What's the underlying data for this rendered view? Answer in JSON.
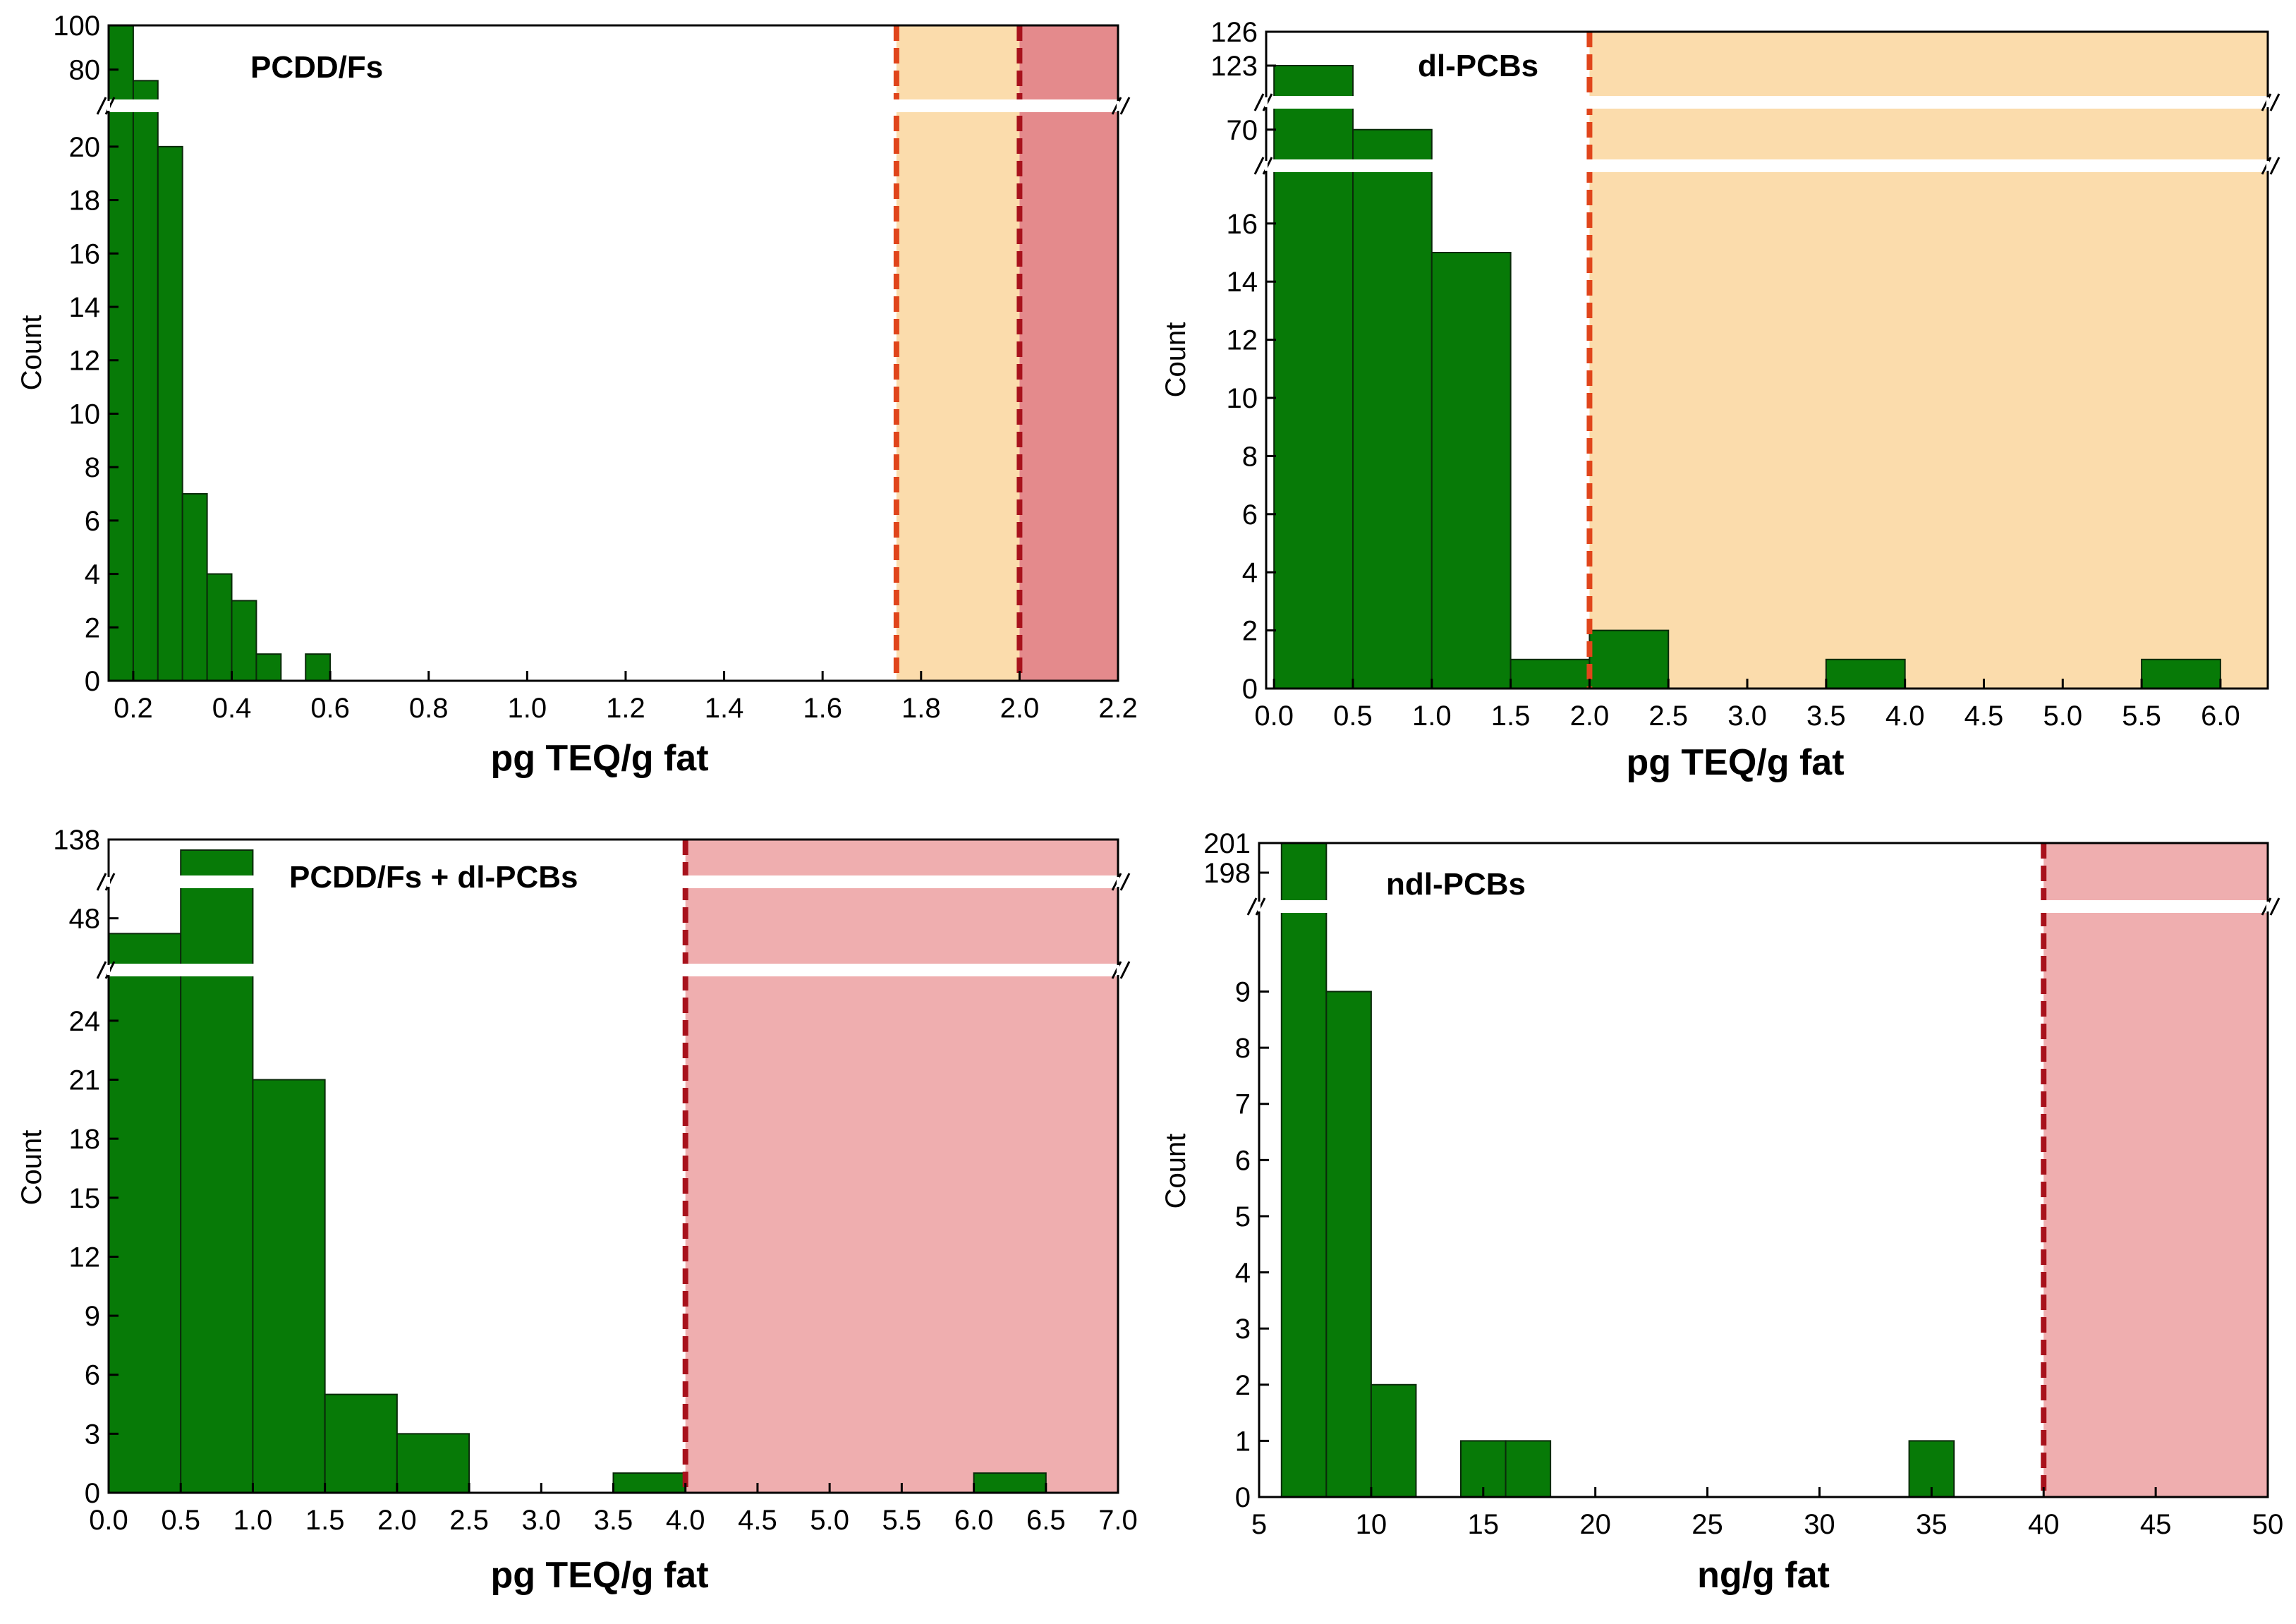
{
  "colors": {
    "bar_fill": "#077a07",
    "bar_stroke": "#0a2a0a",
    "zone_orange": "#fbdcac",
    "zone_red": "#e48a8c",
    "zone_pink": "#efaeaf",
    "line_orange": "#e0451b",
    "line_darkred": "#a8121c"
  },
  "chart_data": [
    {
      "id": "pcdd",
      "type": "bar",
      "title": "PCDD/Fs",
      "xlabel": "pg TEQ/g fat",
      "ylabel": "Count",
      "xlim": [
        0.15,
        2.2
      ],
      "xticks": [
        "0.2",
        "0.4",
        "0.6",
        "0.8",
        "1.0",
        "1.2",
        "1.4",
        "1.6",
        "1.8",
        "2.0",
        "2.2"
      ],
      "yticks_low": [
        "0",
        "2",
        "4",
        "6",
        "8",
        "10",
        "12",
        "14",
        "16",
        "18",
        "20"
      ],
      "yticks_high": [
        "80",
        "100"
      ],
      "ybreak": {
        "low_range": [
          0,
          21
        ],
        "high_range": [
          70,
          100
        ]
      },
      "bins": [
        {
          "x0": 0.15,
          "x1": 0.2,
          "value": 100
        },
        {
          "x0": 0.2,
          "x1": 0.25,
          "value": 75
        },
        {
          "x0": 0.25,
          "x1": 0.3,
          "value": 20
        },
        {
          "x0": 0.3,
          "x1": 0.35,
          "value": 7
        },
        {
          "x0": 0.35,
          "x1": 0.4,
          "value": 4
        },
        {
          "x0": 0.4,
          "x1": 0.45,
          "value": 3
        },
        {
          "x0": 0.45,
          "x1": 0.5,
          "value": 1
        },
        {
          "x0": 0.55,
          "x1": 0.6,
          "value": 1
        }
      ],
      "thresholds": [
        {
          "x": 1.75,
          "color": "orange"
        },
        {
          "x": 2.0,
          "color": "darkred"
        }
      ],
      "zones": [
        {
          "x0": 1.75,
          "x1": 2.0,
          "color": "orange"
        },
        {
          "x0": 2.0,
          "x1": 2.2,
          "color": "red"
        }
      ]
    },
    {
      "id": "dlpcb",
      "type": "bar",
      "title": "dl-PCBs",
      "xlabel": "pg TEQ/g fat",
      "ylabel": "Count",
      "xlim": [
        -0.05,
        6.3
      ],
      "xticks": [
        "0.0",
        "0.5",
        "1.0",
        "1.5",
        "2.0",
        "2.5",
        "3.0",
        "3.5",
        "4.0",
        "4.5",
        "5.0",
        "5.5",
        "6.0"
      ],
      "yticks_low": [
        "0",
        "2",
        "4",
        "6",
        "8",
        "10",
        "12",
        "14",
        "16"
      ],
      "yticks_mid": [
        "70"
      ],
      "yticks_high": [
        "123",
        "126"
      ],
      "ybreak": {
        "low_range": [
          0,
          17.5
        ],
        "mid_range": [
          65,
          73
        ],
        "high_range": [
          121,
          126
        ]
      },
      "bins": [
        {
          "x0": 0.0,
          "x1": 0.5,
          "value": 123
        },
        {
          "x0": 0.5,
          "x1": 1.0,
          "value": 70
        },
        {
          "x0": 1.0,
          "x1": 1.5,
          "value": 15
        },
        {
          "x0": 1.5,
          "x1": 2.0,
          "value": 1
        },
        {
          "x0": 2.0,
          "x1": 2.5,
          "value": 2
        },
        {
          "x0": 3.5,
          "x1": 4.0,
          "value": 1
        },
        {
          "x0": 5.5,
          "x1": 6.0,
          "value": 1
        }
      ],
      "thresholds": [
        {
          "x": 2.0,
          "color": "orange"
        }
      ],
      "zones": [
        {
          "x0": 2.0,
          "x1": 6.3,
          "color": "orange"
        }
      ]
    },
    {
      "id": "sum",
      "type": "bar",
      "title": "PCDD/Fs + dl-PCBs",
      "xlabel": "pg TEQ/g fat",
      "ylabel": "Count",
      "xlim": [
        0,
        7
      ],
      "xticks": [
        "0.0",
        "0.5",
        "1.0",
        "1.5",
        "2.0",
        "2.5",
        "3.0",
        "3.5",
        "4.0",
        "4.5",
        "5.0",
        "5.5",
        "6.0",
        "6.5",
        "7.0"
      ],
      "yticks_low": [
        "0",
        "3",
        "6",
        "9",
        "12",
        "15",
        "18",
        "21",
        "24"
      ],
      "yticks_mid": [
        "48"
      ],
      "yticks_high": [
        "138"
      ],
      "ybreak": {
        "low_range": [
          0,
          25.5
        ],
        "mid_range": [
          44,
          50
        ],
        "high_range": [
          134,
          138
        ]
      },
      "bins": [
        {
          "x0": 0.0,
          "x1": 0.5,
          "value": 46
        },
        {
          "x0": 0.5,
          "x1": 1.0,
          "value": 136
        },
        {
          "x0": 1.0,
          "x1": 1.5,
          "value": 21
        },
        {
          "x0": 1.5,
          "x1": 2.0,
          "value": 5
        },
        {
          "x0": 2.0,
          "x1": 2.5,
          "value": 3
        },
        {
          "x0": 3.5,
          "x1": 4.0,
          "value": 1
        },
        {
          "x0": 6.0,
          "x1": 6.5,
          "value": 1
        }
      ],
      "thresholds": [
        {
          "x": 4.0,
          "color": "darkred"
        }
      ],
      "zones": [
        {
          "x0": 4.0,
          "x1": 7.0,
          "color": "pink"
        }
      ]
    },
    {
      "id": "ndl",
      "type": "bar",
      "title": "ndl-PCBs",
      "xlabel": "ng/g fat",
      "ylabel": "Count",
      "xlim": [
        5,
        50
      ],
      "xticks": [
        "5",
        "10",
        "15",
        "20",
        "25",
        "30",
        "35",
        "40",
        "45",
        "50"
      ],
      "yticks_low": [
        "0",
        "1",
        "2",
        "3",
        "4",
        "5",
        "6",
        "7",
        "8",
        "9"
      ],
      "yticks_high": [
        "198",
        "201"
      ],
      "ybreak": {
        "low_range": [
          0,
          10.2
        ],
        "high_range": [
          196,
          201
        ]
      },
      "bins": [
        {
          "x0": 6,
          "x1": 8,
          "value": 201
        },
        {
          "x0": 8,
          "x1": 10,
          "value": 9
        },
        {
          "x0": 10,
          "x1": 12,
          "value": 2
        },
        {
          "x0": 14,
          "x1": 16,
          "value": 1
        },
        {
          "x0": 16,
          "x1": 18,
          "value": 1
        },
        {
          "x0": 34,
          "x1": 36,
          "value": 1
        }
      ],
      "thresholds": [
        {
          "x": 40,
          "color": "darkred"
        }
      ],
      "zones": [
        {
          "x0": 40,
          "x1": 50,
          "color": "pink"
        }
      ]
    }
  ]
}
